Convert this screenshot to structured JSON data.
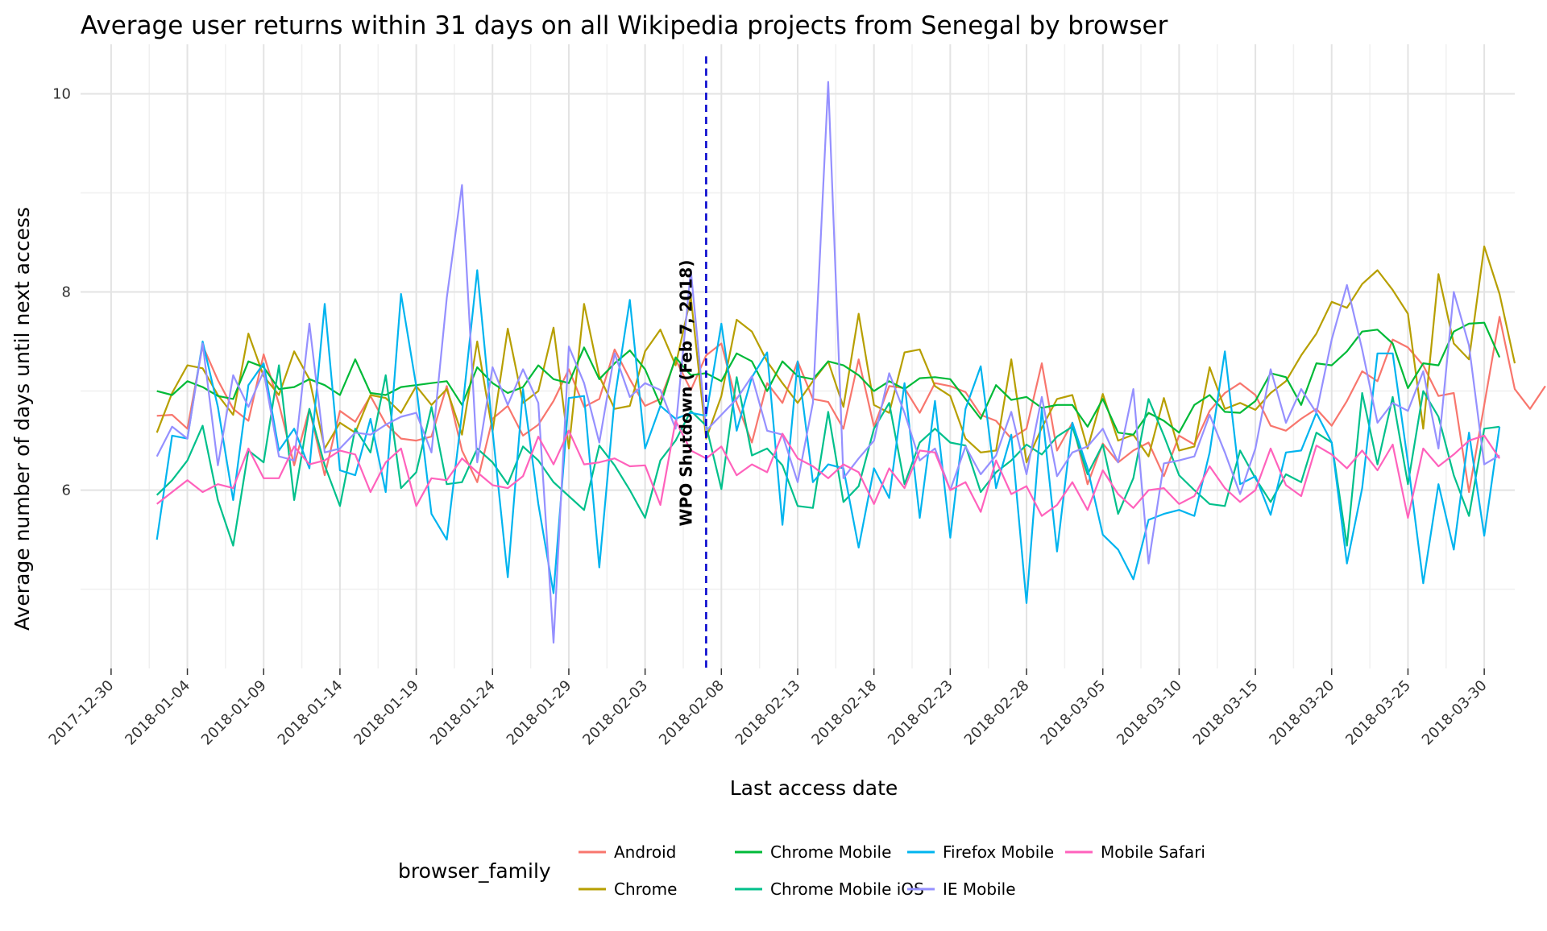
{
  "chart_data": {
    "type": "line",
    "title": "Average user returns within 31 days on all Wikipedia projects from Senegal by browser",
    "xlabel": "Last access date",
    "ylabel": "Average number of days until next access",
    "x_start": "2018-01-02",
    "x_end": "2018-03-30",
    "xlim": [
      "2017-12-28",
      "2018-04-01"
    ],
    "ylim": [
      4.2,
      10.5
    ],
    "x_ticks": [
      "2017-12-30",
      "2018-01-04",
      "2018-01-09",
      "2018-01-14",
      "2018-01-19",
      "2018-01-24",
      "2018-01-29",
      "2018-02-03",
      "2018-02-08",
      "2018-02-13",
      "2018-02-18",
      "2018-02-23",
      "2018-02-28",
      "2018-03-05",
      "2018-03-10",
      "2018-03-15",
      "2018-03-20",
      "2018-03-25",
      "2018-03-30"
    ],
    "y_ticks": [
      6,
      8,
      10
    ],
    "grid": true,
    "legend": {
      "title": "browser_family",
      "position": "bottom"
    },
    "annotation": {
      "x": "2018-02-07",
      "text": "WPO Shutdown (Feb 7, 2018)",
      "color": "#0000cc"
    },
    "series": [
      {
        "name": "Android",
        "color": "#F8766D",
        "values": [
          6.75,
          6.76,
          6.62,
          7.46,
          7.11,
          6.82,
          6.7,
          7.37,
          6.87,
          6.25,
          6.82,
          6.15,
          6.8,
          6.69,
          6.95,
          6.67,
          6.52,
          6.5,
          6.54,
          7.05,
          6.4,
          6.08,
          6.72,
          6.85,
          6.55,
          6.66,
          6.9,
          7.22,
          6.84,
          6.92,
          7.42,
          7.12,
          6.85,
          6.92,
          7.32,
          7.01,
          7.36,
          7.48,
          6.88,
          6.48,
          7.08,
          6.88,
          7.3,
          6.92,
          6.89,
          6.62,
          7.32,
          6.64,
          7.05,
          7.03,
          6.78,
          7.08,
          7.05,
          6.99,
          6.76,
          6.7,
          6.52,
          6.62,
          7.28,
          6.4,
          6.68,
          6.06,
          6.47,
          6.28,
          6.4,
          6.48,
          6.14,
          6.55,
          6.46,
          6.8,
          6.98,
          7.08,
          6.96,
          6.65,
          6.6,
          6.72,
          6.82,
          6.65,
          6.9,
          7.2,
          7.1,
          7.52,
          7.44,
          7.26,
          6.95,
          6.98,
          5.98,
          6.86,
          7.75,
          7.02,
          6.82,
          7.05
        ]
      },
      {
        "name": "Chrome",
        "color": "#B79F00",
        "values": [
          6.58,
          6.98,
          7.26,
          7.23,
          6.96,
          6.76,
          7.58,
          7.15,
          6.96,
          7.4,
          7.12,
          6.42,
          6.68,
          6.58,
          6.96,
          6.93,
          6.78,
          7.05,
          6.86,
          7.02,
          6.56,
          7.5,
          6.59,
          7.63,
          6.88,
          7.0,
          7.64,
          6.42,
          7.88,
          7.15,
          6.82,
          6.85,
          7.4,
          7.62,
          7.26,
          7.95,
          6.52,
          6.95,
          7.72,
          7.6,
          7.3,
          7.08,
          6.88,
          7.1,
          7.3,
          6.84,
          7.78,
          6.86,
          6.78,
          7.39,
          7.42,
          7.05,
          6.95,
          6.52,
          6.38,
          6.4,
          7.32,
          6.28,
          6.63,
          6.92,
          6.96,
          6.42,
          6.97,
          6.5,
          6.56,
          6.34,
          6.93,
          6.4,
          6.44,
          7.24,
          6.82,
          6.88,
          6.81,
          6.98,
          7.1,
          7.36,
          7.58,
          7.9,
          7.84,
          8.08,
          8.22,
          8.02,
          7.78,
          6.62,
          8.18,
          7.48,
          7.32,
          8.46,
          7.98,
          7.28
        ]
      },
      {
        "name": "Chrome Mobile",
        "color": "#00BA38",
        "values": [
          7.0,
          6.96,
          7.1,
          7.04,
          6.95,
          6.92,
          7.3,
          7.24,
          7.02,
          7.04,
          7.12,
          7.06,
          6.96,
          7.32,
          6.98,
          6.96,
          7.04,
          7.06,
          7.08,
          7.1,
          6.86,
          7.24,
          7.08,
          6.98,
          7.04,
          7.26,
          7.12,
          7.08,
          7.44,
          7.12,
          7.28,
          7.41,
          7.22,
          6.86,
          7.34,
          7.16,
          7.18,
          7.1,
          7.38,
          7.3,
          7.0,
          7.3,
          7.15,
          7.12,
          7.3,
          7.26,
          7.16,
          7.0,
          7.1,
          7.02,
          7.13,
          7.14,
          7.12,
          6.92,
          6.72,
          7.06,
          6.91,
          6.94,
          6.83,
          6.86,
          6.86,
          6.64,
          6.92,
          6.58,
          6.56,
          6.78,
          6.7,
          6.58,
          6.86,
          6.96,
          6.79,
          6.78,
          6.9,
          7.18,
          7.14,
          6.86,
          7.28,
          7.26,
          7.4,
          7.6,
          7.62,
          7.48,
          7.03,
          7.28,
          7.26,
          7.6,
          7.68,
          7.69,
          7.34
        ]
      },
      {
        "name": "Chrome Mobile iOS",
        "color": "#00C08B",
        "values": [
          5.95,
          6.1,
          6.3,
          6.65,
          5.9,
          5.44,
          6.4,
          6.28,
          7.26,
          5.9,
          6.82,
          6.25,
          5.84,
          6.62,
          6.38,
          7.16,
          6.02,
          6.18,
          6.84,
          6.06,
          6.08,
          6.42,
          6.28,
          6.06,
          6.44,
          6.3,
          6.08,
          5.94,
          5.8,
          6.45,
          6.25,
          6.0,
          5.72,
          6.3,
          6.5,
          6.8,
          6.65,
          6.01,
          7.14,
          6.35,
          6.42,
          6.25,
          5.84,
          5.82,
          6.79,
          5.88,
          6.04,
          6.62,
          6.88,
          6.06,
          6.48,
          6.62,
          6.48,
          6.45,
          5.98,
          6.18,
          6.3,
          6.46,
          6.36,
          6.54,
          6.64,
          6.16,
          6.46,
          5.76,
          6.12,
          6.92,
          6.55,
          6.15,
          6.0,
          5.86,
          5.84,
          6.4,
          6.12,
          5.88,
          6.16,
          6.08,
          6.58,
          6.48,
          5.44,
          6.98,
          6.26,
          6.94,
          6.06,
          7.0,
          6.74,
          6.15,
          5.74,
          6.62,
          6.64
        ]
      },
      {
        "name": "Firefox Mobile",
        "color": "#00B4EF",
        "values": [
          5.5,
          6.55,
          6.52,
          7.5,
          6.84,
          5.9,
          7.06,
          7.28,
          6.4,
          6.62,
          6.22,
          7.88,
          6.2,
          6.15,
          6.72,
          5.98,
          7.98,
          7.05,
          5.76,
          5.5,
          6.78,
          8.22,
          6.6,
          5.12,
          7.02,
          5.86,
          4.96,
          6.93,
          6.95,
          5.22,
          6.92,
          7.92,
          6.42,
          6.85,
          6.72,
          6.78,
          6.75,
          7.68,
          6.6,
          7.14,
          7.39,
          5.65,
          7.3,
          6.08,
          6.26,
          6.22,
          5.42,
          6.22,
          5.92,
          7.08,
          5.72,
          6.9,
          5.52,
          6.82,
          7.25,
          6.02,
          6.56,
          4.86,
          6.82,
          5.38,
          6.68,
          6.22,
          5.55,
          5.4,
          5.1,
          5.7,
          5.76,
          5.8,
          5.74,
          6.38,
          7.4,
          6.06,
          6.14,
          5.75,
          6.38,
          6.4,
          6.78,
          6.48,
          5.26,
          6.02,
          7.38,
          7.38,
          6.28,
          5.06,
          6.06,
          5.4,
          6.58,
          5.54,
          6.64
        ]
      },
      {
        "name": "IE Mobile",
        "color": "#9590FF",
        "values": [
          6.34,
          6.64,
          6.52,
          7.48,
          6.25,
          7.16,
          6.84,
          7.2,
          6.34,
          6.3,
          7.68,
          6.38,
          6.42,
          6.58,
          6.56,
          6.66,
          6.74,
          6.78,
          6.38,
          7.94,
          9.08,
          6.28,
          7.24,
          6.86,
          7.22,
          6.88,
          4.46,
          7.45,
          7.08,
          6.48,
          7.38,
          6.94,
          7.08,
          7.01,
          6.62,
          8.22,
          6.6,
          6.76,
          6.92,
          7.15,
          6.6,
          6.56,
          6.08,
          6.88,
          10.12,
          6.12,
          6.32,
          6.5,
          7.18,
          6.78,
          6.3,
          6.42,
          6.0,
          6.44,
          6.16,
          6.35,
          6.79,
          6.16,
          6.94,
          6.14,
          6.38,
          6.44,
          6.62,
          6.28,
          7.02,
          5.26,
          6.27,
          6.3,
          6.34,
          6.76,
          6.38,
          5.96,
          6.42,
          7.22,
          6.68,
          7.02,
          6.78,
          7.52,
          8.07,
          7.42,
          6.68,
          6.88,
          6.8,
          7.2,
          6.42,
          8.0,
          7.46,
          6.26,
          6.35
        ]
      },
      {
        "name": "Mobile Safari",
        "color": "#FF62BC",
        "values": [
          5.86,
          5.98,
          6.1,
          5.98,
          6.06,
          6.02,
          6.42,
          6.12,
          6.12,
          6.44,
          6.26,
          6.3,
          6.4,
          6.36,
          5.98,
          6.28,
          6.42,
          5.84,
          6.12,
          6.1,
          6.32,
          6.18,
          6.05,
          6.02,
          6.14,
          6.54,
          6.26,
          6.6,
          6.26,
          6.28,
          6.32,
          6.24,
          6.25,
          5.85,
          6.7,
          6.4,
          6.32,
          6.44,
          6.15,
          6.26,
          6.18,
          6.57,
          6.32,
          6.24,
          6.12,
          6.26,
          6.18,
          5.86,
          6.22,
          6.02,
          6.4,
          6.38,
          6.0,
          6.08,
          5.78,
          6.3,
          5.96,
          6.04,
          5.74,
          5.85,
          6.08,
          5.8,
          6.2,
          5.96,
          5.82,
          6.0,
          6.02,
          5.86,
          5.94,
          6.24,
          6.02,
          5.88,
          6.0,
          6.42,
          6.05,
          5.94,
          6.45,
          6.36,
          6.22,
          6.4,
          6.2,
          6.46,
          5.72,
          6.42,
          6.24,
          6.36,
          6.5,
          6.55,
          6.32
        ]
      }
    ]
  }
}
